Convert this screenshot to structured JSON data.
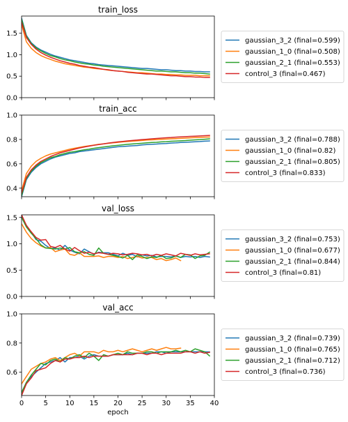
{
  "colors": {
    "gaussian_3_2": "#1f77b4",
    "gaussian_1_0": "#ff7f0e",
    "gaussian_2_1": "#2ca02c",
    "control_3": "#d62728"
  },
  "chart_data": [
    {
      "type": "line",
      "title": "train_loss",
      "xlabel": "",
      "ylabel": "",
      "xlim": [
        0,
        40
      ],
      "ylim": [
        0,
        1.9
      ],
      "yticks": [
        0.0,
        0.5,
        1.0,
        1.5
      ],
      "ytick_labels": [
        "0.0",
        "0.5",
        "1.0",
        "1.5"
      ],
      "xticks": [
        0,
        5,
        10,
        15,
        20,
        25,
        30,
        35,
        40
      ],
      "show_xtick_labels": false,
      "legend_position": "right",
      "x": [
        0,
        1,
        2,
        3,
        4,
        5,
        6,
        7,
        8,
        9,
        10,
        11,
        12,
        13,
        14,
        15,
        16,
        17,
        18,
        19,
        20,
        21,
        22,
        23,
        24,
        25,
        26,
        27,
        28,
        29,
        30,
        31,
        32,
        33,
        34,
        35,
        36,
        37,
        38,
        39
      ],
      "series": [
        {
          "key": "gaussian_3_2",
          "name": "gaussian_3_2 (final=0.599)",
          "values": [
            1.85,
            1.45,
            1.28,
            1.18,
            1.11,
            1.06,
            1.01,
            0.97,
            0.94,
            0.91,
            0.88,
            0.86,
            0.84,
            0.82,
            0.8,
            0.79,
            0.77,
            0.76,
            0.75,
            0.74,
            0.73,
            0.72,
            0.71,
            0.7,
            0.69,
            0.68,
            0.68,
            0.67,
            0.66,
            0.65,
            0.65,
            0.64,
            0.63,
            0.63,
            0.62,
            0.62,
            0.61,
            0.61,
            0.6,
            0.6
          ]
        },
        {
          "key": "gaussian_1_0",
          "name": "gaussian_1_0 (final=0.508)",
          "values": [
            1.7,
            1.3,
            1.15,
            1.05,
            0.98,
            0.93,
            0.89,
            0.85,
            0.82,
            0.79,
            0.77,
            0.75,
            0.73,
            0.71,
            0.7,
            0.68,
            0.67,
            0.66,
            0.64,
            0.63,
            0.62,
            0.61,
            0.6,
            0.59,
            0.58,
            0.58,
            0.57,
            0.56,
            0.55,
            0.55,
            0.54,
            0.54,
            0.53,
            0.53,
            0.52,
            0.52,
            0.52,
            0.51,
            0.51,
            0.51
          ]
        },
        {
          "key": "gaussian_2_1",
          "name": "gaussian_2_1 (final=0.553)",
          "values": [
            1.82,
            1.43,
            1.26,
            1.16,
            1.09,
            1.03,
            0.98,
            0.95,
            0.91,
            0.88,
            0.86,
            0.83,
            0.81,
            0.79,
            0.78,
            0.76,
            0.75,
            0.73,
            0.72,
            0.71,
            0.7,
            0.69,
            0.68,
            0.67,
            0.66,
            0.65,
            0.64,
            0.63,
            0.62,
            0.62,
            0.61,
            0.6,
            0.6,
            0.59,
            0.58,
            0.58,
            0.57,
            0.57,
            0.56,
            0.55
          ]
        },
        {
          "key": "control_3",
          "name": "control_3 (final=0.467)",
          "values": [
            1.75,
            1.4,
            1.24,
            1.13,
            1.05,
            0.99,
            0.94,
            0.9,
            0.86,
            0.83,
            0.8,
            0.78,
            0.75,
            0.73,
            0.71,
            0.7,
            0.68,
            0.66,
            0.65,
            0.63,
            0.62,
            0.61,
            0.59,
            0.58,
            0.57,
            0.56,
            0.55,
            0.55,
            0.54,
            0.53,
            0.52,
            0.51,
            0.51,
            0.5,
            0.49,
            0.49,
            0.48,
            0.48,
            0.47,
            0.47
          ]
        }
      ]
    },
    {
      "type": "line",
      "title": "train_acc",
      "xlabel": "",
      "ylabel": "",
      "xlim": [
        0,
        40
      ],
      "ylim": [
        0.33,
        1.0
      ],
      "yticks": [
        0.4,
        0.6,
        0.8,
        1.0
      ],
      "ytick_labels": [
        "0.4",
        "0.6",
        "0.8",
        "1.0"
      ],
      "xticks": [
        0,
        5,
        10,
        15,
        20,
        25,
        30,
        35,
        40
      ],
      "show_xtick_labels": false,
      "legend_position": "right",
      "x": [
        0,
        1,
        2,
        3,
        4,
        5,
        6,
        7,
        8,
        9,
        10,
        11,
        12,
        13,
        14,
        15,
        16,
        17,
        18,
        19,
        20,
        21,
        22,
        23,
        24,
        25,
        26,
        27,
        28,
        29,
        30,
        31,
        32,
        33,
        34,
        35,
        36,
        37,
        38,
        39
      ],
      "series": [
        {
          "key": "gaussian_3_2",
          "name": "gaussian_3_2 (final=0.788)",
          "values": [
            0.33,
            0.47,
            0.53,
            0.57,
            0.6,
            0.62,
            0.64,
            0.655,
            0.665,
            0.675,
            0.685,
            0.69,
            0.7,
            0.705,
            0.71,
            0.715,
            0.72,
            0.725,
            0.73,
            0.735,
            0.74,
            0.742,
            0.745,
            0.748,
            0.75,
            0.755,
            0.758,
            0.76,
            0.762,
            0.765,
            0.767,
            0.77,
            0.772,
            0.775,
            0.777,
            0.779,
            0.781,
            0.783,
            0.786,
            0.788
          ]
        },
        {
          "key": "gaussian_1_0",
          "name": "gaussian_1_0 (final=0.82)",
          "values": [
            0.38,
            0.52,
            0.58,
            0.62,
            0.645,
            0.665,
            0.68,
            0.69,
            0.7,
            0.71,
            0.72,
            0.728,
            0.735,
            0.742,
            0.748,
            0.754,
            0.76,
            0.764,
            0.768,
            0.772,
            0.776,
            0.78,
            0.783,
            0.786,
            0.789,
            0.792,
            0.795,
            0.797,
            0.799,
            0.801,
            0.803,
            0.805,
            0.807,
            0.809,
            0.811,
            0.813,
            0.815,
            0.817,
            0.819,
            0.82
          ]
        },
        {
          "key": "gaussian_2_1",
          "name": "gaussian_2_1 (final=0.805)",
          "values": [
            0.34,
            0.48,
            0.54,
            0.58,
            0.61,
            0.63,
            0.65,
            0.66,
            0.675,
            0.685,
            0.695,
            0.7,
            0.708,
            0.715,
            0.72,
            0.727,
            0.733,
            0.738,
            0.743,
            0.748,
            0.752,
            0.756,
            0.76,
            0.763,
            0.766,
            0.769,
            0.772,
            0.775,
            0.777,
            0.78,
            0.782,
            0.785,
            0.787,
            0.789,
            0.791,
            0.794,
            0.797,
            0.799,
            0.802,
            0.805
          ]
        },
        {
          "key": "control_3",
          "name": "control_3 (final=0.833)",
          "values": [
            0.36,
            0.49,
            0.55,
            0.59,
            0.62,
            0.64,
            0.66,
            0.675,
            0.69,
            0.7,
            0.71,
            0.72,
            0.73,
            0.738,
            0.745,
            0.752,
            0.758,
            0.764,
            0.77,
            0.775,
            0.78,
            0.784,
            0.788,
            0.792,
            0.795,
            0.799,
            0.802,
            0.805,
            0.808,
            0.811,
            0.814,
            0.816,
            0.819,
            0.821,
            0.823,
            0.825,
            0.827,
            0.829,
            0.831,
            0.833
          ]
        }
      ]
    },
    {
      "type": "line",
      "title": "val_loss",
      "xlabel": "",
      "ylabel": "",
      "xlim": [
        0,
        40
      ],
      "ylim": [
        0,
        1.55
      ],
      "yticks": [
        0.0,
        0.5,
        1.0,
        1.5
      ],
      "ytick_labels": [
        "0.0",
        "0.5",
        "1.0",
        "1.5"
      ],
      "xticks": [
        0,
        5,
        10,
        15,
        20,
        25,
        30,
        35,
        40
      ],
      "show_xtick_labels": false,
      "legend_position": "right",
      "x": [
        0,
        1,
        2,
        3,
        4,
        5,
        6,
        7,
        8,
        9,
        10,
        11,
        12,
        13,
        14,
        15,
        16,
        17,
        18,
        19,
        20,
        21,
        22,
        23,
        24,
        25,
        26,
        27,
        28,
        29,
        30,
        31,
        32,
        33,
        34,
        35,
        36,
        37,
        38,
        39
      ],
      "series": [
        {
          "key": "gaussian_3_2",
          "name": "gaussian_3_2 (final=0.753)",
          "values": [
            1.52,
            1.35,
            1.22,
            1.08,
            1.05,
            0.97,
            0.91,
            0.92,
            0.88,
            0.97,
            0.88,
            0.84,
            0.81,
            0.9,
            0.85,
            0.8,
            0.84,
            0.83,
            0.83,
            0.8,
            0.77,
            0.82,
            0.78,
            0.8,
            0.75,
            0.79,
            0.77,
            0.78,
            0.75,
            0.76,
            0.76,
            0.75,
            0.77,
            0.74,
            0.76,
            0.75,
            0.76,
            0.74,
            0.76,
            0.75
          ]
        },
        {
          "key": "gaussian_1_0",
          "name": "gaussian_1_0 (final=0.677)",
          "values": [
            1.38,
            1.22,
            1.1,
            1.02,
            0.96,
            0.92,
            0.93,
            0.85,
            0.88,
            0.9,
            0.8,
            0.78,
            0.83,
            0.76,
            0.76,
            0.76,
            0.77,
            0.74,
            0.76,
            0.76,
            0.74,
            0.76,
            0.72,
            0.74,
            0.76,
            0.73,
            0.74,
            0.74,
            0.7,
            0.72,
            0.68,
            0.7,
            0.73,
            0.68,
            null,
            null,
            null,
            null,
            null,
            null
          ]
        },
        {
          "key": "gaussian_2_1",
          "name": "gaussian_2_1 (final=0.844)",
          "values": [
            1.5,
            1.32,
            1.2,
            1.1,
            0.98,
            0.92,
            0.91,
            0.9,
            0.92,
            0.9,
            0.93,
            0.85,
            0.83,
            0.85,
            0.8,
            0.78,
            0.92,
            0.82,
            0.8,
            0.78,
            0.76,
            0.73,
            0.78,
            0.7,
            0.79,
            0.76,
            0.72,
            0.75,
            0.74,
            0.78,
            0.72,
            0.73,
            0.77,
            0.74,
            0.8,
            0.79,
            0.72,
            0.77,
            0.78,
            0.84
          ]
        },
        {
          "key": "control_3",
          "name": "control_3 (final=0.81)",
          "values": [
            1.55,
            1.35,
            1.23,
            1.12,
            1.07,
            1.08,
            0.95,
            0.93,
            0.97,
            0.9,
            0.86,
            0.93,
            0.87,
            0.82,
            0.84,
            0.81,
            0.83,
            0.82,
            0.8,
            0.82,
            0.81,
            0.79,
            0.8,
            0.82,
            0.81,
            0.79,
            0.8,
            0.77,
            0.8,
            0.78,
            0.81,
            0.79,
            0.77,
            0.82,
            0.8,
            0.78,
            0.81,
            0.79,
            0.8,
            0.81
          ]
        }
      ]
    },
    {
      "type": "line",
      "title": "val_acc",
      "xlabel": "epoch",
      "ylabel": "",
      "xlim": [
        0,
        40
      ],
      "ylim": [
        0.44,
        1.0
      ],
      "yticks": [
        0.6,
        0.8,
        1.0
      ],
      "ytick_labels": [
        "0.6",
        "0.8",
        "1.0"
      ],
      "xticks": [
        0,
        5,
        10,
        15,
        20,
        25,
        30,
        35,
        40
      ],
      "xtick_labels": [
        "0",
        "5",
        "10",
        "15",
        "20",
        "25",
        "30",
        "35",
        "40"
      ],
      "show_xtick_labels": true,
      "legend_position": "right",
      "x": [
        0,
        1,
        2,
        3,
        4,
        5,
        6,
        7,
        8,
        9,
        10,
        11,
        12,
        13,
        14,
        15,
        16,
        17,
        18,
        19,
        20,
        21,
        22,
        23,
        24,
        25,
        26,
        27,
        28,
        29,
        30,
        31,
        32,
        33,
        34,
        35,
        36,
        37,
        38,
        39
      ],
      "series": [
        {
          "key": "gaussian_3_2",
          "name": "gaussian_3_2 (final=0.739)",
          "values": [
            0.46,
            0.53,
            0.57,
            0.6,
            0.63,
            0.66,
            0.67,
            0.68,
            0.7,
            0.67,
            0.7,
            0.7,
            0.71,
            0.69,
            0.71,
            0.72,
            0.71,
            0.71,
            0.71,
            0.72,
            0.72,
            0.72,
            0.73,
            0.72,
            0.73,
            0.73,
            0.73,
            0.73,
            0.74,
            0.74,
            0.73,
            0.74,
            0.74,
            0.74,
            0.74,
            0.74,
            0.74,
            0.74,
            0.74,
            0.739
          ]
        },
        {
          "key": "gaussian_1_0",
          "name": "gaussian_1_0 (final=0.765)",
          "values": [
            0.52,
            0.57,
            0.62,
            0.64,
            0.66,
            0.67,
            0.69,
            0.7,
            0.68,
            0.7,
            0.72,
            0.73,
            0.71,
            0.74,
            0.74,
            0.74,
            0.73,
            0.75,
            0.74,
            0.74,
            0.75,
            0.74,
            0.75,
            0.76,
            0.75,
            0.74,
            0.75,
            0.76,
            0.75,
            0.76,
            0.77,
            0.76,
            0.76,
            0.765,
            null,
            null,
            null,
            null,
            null,
            null
          ]
        },
        {
          "key": "gaussian_2_1",
          "name": "gaussian_2_1 (final=0.712)",
          "values": [
            0.46,
            0.53,
            0.58,
            0.62,
            0.66,
            0.65,
            0.68,
            0.69,
            0.67,
            0.7,
            0.69,
            0.71,
            0.72,
            0.7,
            0.73,
            0.71,
            0.68,
            0.72,
            0.71,
            0.72,
            0.73,
            0.72,
            0.74,
            0.73,
            0.73,
            0.73,
            0.74,
            0.74,
            0.73,
            0.74,
            0.74,
            0.74,
            0.75,
            0.74,
            0.75,
            0.74,
            0.76,
            0.75,
            0.74,
            0.712
          ]
        },
        {
          "key": "control_3",
          "name": "control_3 (final=0.736)",
          "values": [
            0.44,
            0.52,
            0.56,
            0.61,
            0.62,
            0.63,
            0.66,
            0.68,
            0.67,
            0.69,
            0.69,
            0.7,
            0.7,
            0.71,
            0.7,
            0.71,
            0.71,
            0.71,
            0.71,
            0.72,
            0.72,
            0.72,
            0.72,
            0.72,
            0.73,
            0.73,
            0.72,
            0.73,
            0.73,
            0.72,
            0.73,
            0.73,
            0.73,
            0.73,
            0.74,
            0.74,
            0.73,
            0.74,
            0.73,
            0.736
          ]
        }
      ]
    }
  ]
}
